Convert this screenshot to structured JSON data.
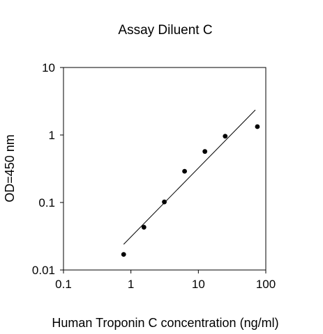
{
  "chart_data": {
    "type": "scatter",
    "title": "Assay Diluent C",
    "xlabel": "Human Troponin C concentration (ng/ml)",
    "ylabel": "OD=450 nm",
    "x_scale": "log",
    "y_scale": "log",
    "xlim": [
      0.1,
      100
    ],
    "ylim": [
      0.01,
      10
    ],
    "x_ticks": [
      0.1,
      1,
      10,
      100
    ],
    "x_tick_labels": [
      "0.1",
      "1",
      "10",
      "100"
    ],
    "y_ticks": [
      0.01,
      0.1,
      1,
      10
    ],
    "y_tick_labels": [
      "0.01",
      "0.1",
      "1",
      "10"
    ],
    "grid": false,
    "series": [
      {
        "x": [
          0.78,
          1.56,
          3.13,
          6.25,
          12.5,
          25,
          75
        ],
        "y": [
          0.017,
          0.043,
          0.102,
          0.29,
          0.57,
          0.96,
          1.33
        ]
      }
    ],
    "fit_line": {
      "x": [
        0.78,
        70
      ],
      "y": [
        0.024,
        2.35
      ]
    },
    "colors": {
      "points": "#000000",
      "line": "#000000",
      "axes": "#000000"
    }
  }
}
